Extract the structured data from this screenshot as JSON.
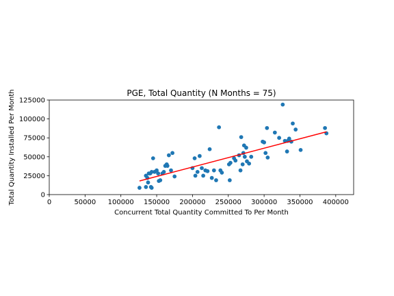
{
  "chart_data": {
    "type": "scatter",
    "title": "PGE, Total Quantity (N Months = 75)",
    "xlabel": "Concurrent Total Quantity Committed To Per Month",
    "ylabel": "Total Quantity Installed Per Month",
    "xlim": [
      0,
      425000
    ],
    "ylim": [
      0,
      125000
    ],
    "xticks": [
      0,
      50000,
      100000,
      150000,
      200000,
      250000,
      300000,
      350000,
      400000
    ],
    "yticks": [
      0,
      25000,
      50000,
      75000,
      100000,
      125000
    ],
    "grid": false,
    "colors": {
      "points": "#1f77b4",
      "fit": "#ff0000"
    },
    "series": [
      {
        "marker": "circle",
        "points": [
          [
            126000,
            9000
          ],
          [
            135000,
            10000
          ],
          [
            138000,
            16000
          ],
          [
            142000,
            10000
          ],
          [
            143000,
            9000
          ],
          [
            135000,
            25000
          ],
          [
            137000,
            22000
          ],
          [
            139000,
            28000
          ],
          [
            141000,
            28000
          ],
          [
            143000,
            30000
          ],
          [
            145000,
            48000
          ],
          [
            147000,
            30000
          ],
          [
            150000,
            32000
          ],
          [
            152000,
            28000
          ],
          [
            153000,
            18000
          ],
          [
            155000,
            19000
          ],
          [
            158000,
            28000
          ],
          [
            160000,
            30000
          ],
          [
            162000,
            38000
          ],
          [
            164000,
            40000
          ],
          [
            165000,
            38000
          ],
          [
            167000,
            52000
          ],
          [
            170000,
            32000
          ],
          [
            172000,
            55000
          ],
          [
            175000,
            24000
          ],
          [
            200000,
            35000
          ],
          [
            203000,
            48000
          ],
          [
            204000,
            25000
          ],
          [
            207000,
            30000
          ],
          [
            210000,
            51000
          ],
          [
            213000,
            35000
          ],
          [
            215000,
            25000
          ],
          [
            218000,
            32000
          ],
          [
            221000,
            31000
          ],
          [
            224000,
            60000
          ],
          [
            227000,
            22000
          ],
          [
            230000,
            32000
          ],
          [
            233000,
            19000
          ],
          [
            237000,
            89000
          ],
          [
            239000,
            32000
          ],
          [
            241000,
            29000
          ],
          [
            251000,
            40000
          ],
          [
            252000,
            19000
          ],
          [
            253000,
            42000
          ],
          [
            258000,
            48000
          ],
          [
            260000,
            45000
          ],
          [
            265000,
            52000
          ],
          [
            267000,
            32000
          ],
          [
            268000,
            76000
          ],
          [
            270000,
            40000
          ],
          [
            271000,
            55000
          ],
          [
            272000,
            65000
          ],
          [
            273000,
            50000
          ],
          [
            275000,
            62000
          ],
          [
            276000,
            44000
          ],
          [
            279000,
            41000
          ],
          [
            282000,
            50000
          ],
          [
            298000,
            70000
          ],
          [
            302000,
            55000
          ],
          [
            304000,
            88000
          ],
          [
            305000,
            49000
          ],
          [
            315000,
            82000
          ],
          [
            321000,
            75000
          ],
          [
            326000,
            119000
          ],
          [
            329000,
            71000
          ],
          [
            332000,
            57000
          ],
          [
            333000,
            71000
          ],
          [
            335000,
            74000
          ],
          [
            338000,
            70000
          ],
          [
            340000,
            94000
          ],
          [
            344000,
            86000
          ],
          [
            351000,
            59000
          ],
          [
            385000,
            88000
          ],
          [
            387000,
            81000
          ],
          [
            300000,
            69000
          ]
        ]
      }
    ],
    "fit_line": {
      "x": [
        126000,
        387000
      ],
      "y": [
        18000,
        83000
      ]
    }
  }
}
